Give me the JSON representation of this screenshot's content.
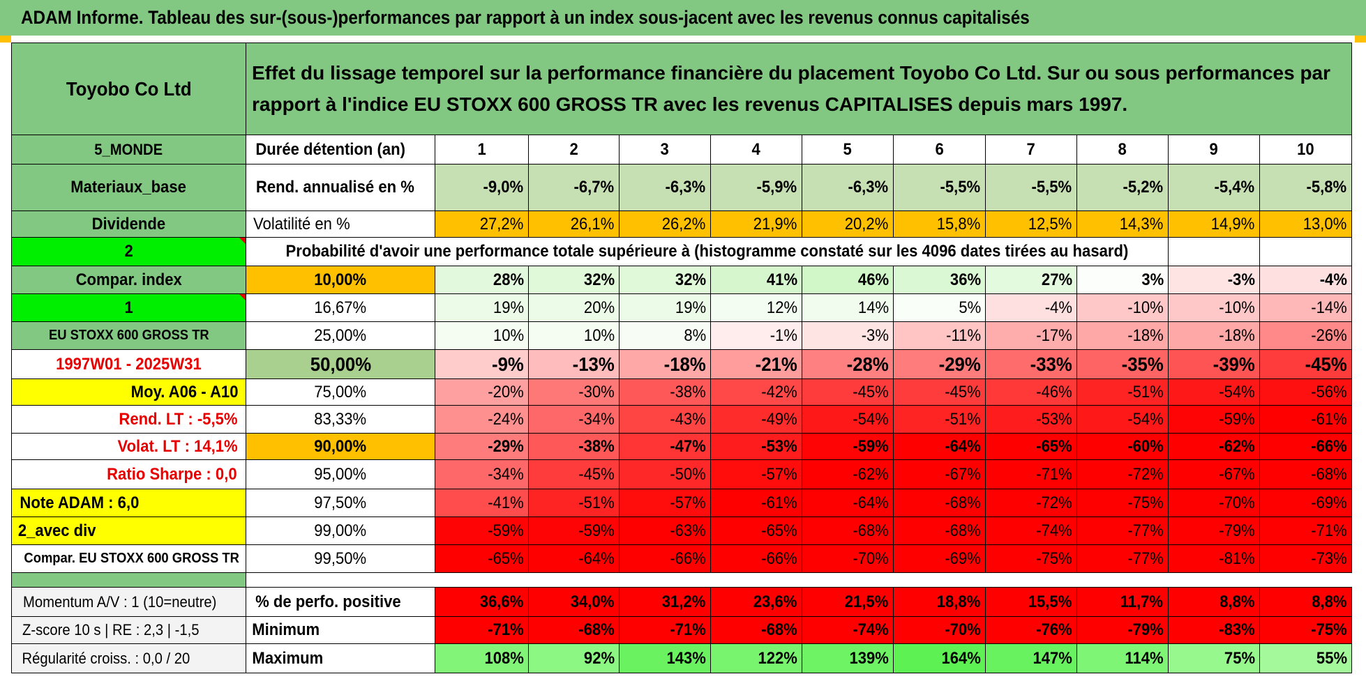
{
  "title": "ADAM Informe. Tableau des sur-(sous-)performances par rapport à un index sous-jacent avec les revenus connus capitalisés",
  "header": {
    "company": "Toyobo Co Ltd",
    "description": "Effet du lissage temporel sur la performance financière du placement Toyobo Co Ltd. Sur ou sous performances par rapport à l'indice EU STOXX 600 GROSS TR avec les revenus CAPITALISES depuis mars 1997."
  },
  "sidebar": {
    "region": "5_MONDE",
    "sector": "Materiaux_base",
    "type": "Dividende",
    "val_2": "2",
    "compar_label": "Compar. index",
    "val_1": "1",
    "index_name": "EU STOXX 600 GROSS TR",
    "period": "1997W01 - 2025W31",
    "moy": "Moy. A06 - A10",
    "rend_lt": "Rend. LT :    -5,5%",
    "volat_lt": "Volat. LT :    14,1%",
    "sharpe": "Ratio Sharpe :     0,0",
    "note": "Note ADAM : 6,0",
    "avec_div": "2_avec div",
    "compar_full": "Compar. EU STOXX 600 GROSS TR"
  },
  "holding": {
    "label": "Durée détention (an)",
    "years": [
      "1",
      "2",
      "3",
      "4",
      "5",
      "6",
      "7",
      "8",
      "9",
      "10"
    ]
  },
  "rend": {
    "label": "Rend. annualisé en %",
    "values": [
      "-9,0%",
      "-6,7%",
      "-6,3%",
      "-5,9%",
      "-6,3%",
      "-5,5%",
      "-5,5%",
      "-5,2%",
      "-5,4%",
      "-5,8%"
    ]
  },
  "vol": {
    "label": "Volatilité en %",
    "values": [
      "27,2%",
      "26,1%",
      "26,2%",
      "21,9%",
      "20,2%",
      "15,8%",
      "12,5%",
      "14,3%",
      "14,9%",
      "13,0%"
    ]
  },
  "prob_title": "Probabilité d'avoir une performance totale supérieure à (histogramme constaté sur les 4096 dates tirées au hasard)",
  "prob_rows": [
    {
      "p": "10,00%",
      "v": [
        "28%",
        "32%",
        "32%",
        "41%",
        "46%",
        "36%",
        "27%",
        "3%",
        "-3%",
        "-4%"
      ]
    },
    {
      "p": "16,67%",
      "v": [
        "19%",
        "20%",
        "19%",
        "12%",
        "14%",
        "5%",
        "-4%",
        "-10%",
        "-10%",
        "-14%"
      ]
    },
    {
      "p": "25,00%",
      "v": [
        "10%",
        "10%",
        "8%",
        "-1%",
        "-3%",
        "-11%",
        "-17%",
        "-18%",
        "-18%",
        "-26%"
      ]
    },
    {
      "p": "50,00%",
      "v": [
        "-9%",
        "-13%",
        "-18%",
        "-21%",
        "-28%",
        "-29%",
        "-33%",
        "-35%",
        "-39%",
        "-45%"
      ]
    },
    {
      "p": "75,00%",
      "v": [
        "-20%",
        "-30%",
        "-38%",
        "-42%",
        "-45%",
        "-45%",
        "-46%",
        "-51%",
        "-54%",
        "-56%"
      ]
    },
    {
      "p": "83,33%",
      "v": [
        "-24%",
        "-34%",
        "-43%",
        "-49%",
        "-54%",
        "-51%",
        "-53%",
        "-54%",
        "-59%",
        "-61%"
      ]
    },
    {
      "p": "90,00%",
      "v": [
        "-29%",
        "-38%",
        "-47%",
        "-53%",
        "-59%",
        "-64%",
        "-65%",
        "-60%",
        "-62%",
        "-66%"
      ]
    },
    {
      "p": "95,00%",
      "v": [
        "-34%",
        "-45%",
        "-50%",
        "-57%",
        "-62%",
        "-67%",
        "-71%",
        "-72%",
        "-67%",
        "-68%"
      ]
    },
    {
      "p": "97,50%",
      "v": [
        "-41%",
        "-51%",
        "-57%",
        "-61%",
        "-64%",
        "-68%",
        "-72%",
        "-75%",
        "-70%",
        "-69%"
      ]
    },
    {
      "p": "99,00%",
      "v": [
        "-59%",
        "-59%",
        "-63%",
        "-65%",
        "-68%",
        "-68%",
        "-74%",
        "-77%",
        "-79%",
        "-71%"
      ]
    },
    {
      "p": "99,50%",
      "v": [
        "-65%",
        "-64%",
        "-66%",
        "-66%",
        "-70%",
        "-69%",
        "-75%",
        "-77%",
        "-81%",
        "-73%"
      ]
    }
  ],
  "stats": [
    {
      "left": "Momentum A/V : 1 (10=neutre)",
      "label": "% de perfo. positive",
      "v": [
        "36,6%",
        "34,0%",
        "31,2%",
        "23,6%",
        "21,5%",
        "18,8%",
        "15,5%",
        "11,7%",
        "8,8%",
        "8,8%"
      ]
    },
    {
      "left": "Z-score 10 s | RE : 2,3 | -1,5",
      "label": "Minimum",
      "v": [
        "-71%",
        "-68%",
        "-71%",
        "-68%",
        "-74%",
        "-70%",
        "-76%",
        "-79%",
        "-83%",
        "-75%"
      ]
    },
    {
      "left": "Régularité croiss. : 0,0 / 20",
      "label": "Maximum",
      "v": [
        "108%",
        "92%",
        "143%",
        "122%",
        "139%",
        "164%",
        "147%",
        "114%",
        "75%",
        "55%"
      ]
    }
  ],
  "colors": {
    "header_green": "#82c882",
    "lime": "#00ee00",
    "yellow": "#ffff00",
    "orange": "#ffc000",
    "red_text": "#e60000"
  }
}
